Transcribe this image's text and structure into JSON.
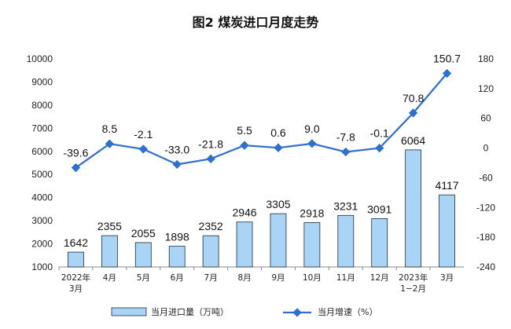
{
  "chart_data": {
    "type": "bar+line",
    "title": "图2  煤炭进口月度走势",
    "categories": [
      [
        "2022年",
        "3月"
      ],
      [
        "4月"
      ],
      [
        "5月"
      ],
      [
        "6月"
      ],
      [
        "7月"
      ],
      [
        "8月"
      ],
      [
        "9月"
      ],
      [
        "10月"
      ],
      [
        "11月"
      ],
      [
        "12月"
      ],
      [
        "2023年",
        "1−2月"
      ],
      [
        "3月"
      ]
    ],
    "series": [
      {
        "name": "当月进口量（万吨）",
        "type": "bar",
        "axis": "left",
        "values": [
          1642,
          2355,
          2055,
          1898,
          2352,
          2946,
          3305,
          2918,
          3231,
          3091,
          6064,
          4117
        ],
        "labels": [
          "1642",
          "2355",
          "2055",
          "1898",
          "2352",
          "2946",
          "3305",
          "2918",
          "3231",
          "3091",
          "6064",
          "4117"
        ]
      },
      {
        "name": "当月增速（%）",
        "type": "line",
        "axis": "right",
        "values": [
          -39.6,
          8.5,
          -2.1,
          -33.0,
          -21.8,
          5.5,
          0.6,
          9.0,
          -7.8,
          -0.1,
          70.8,
          150.7
        ],
        "labels": [
          "-39.6",
          "8.5",
          "-2.1",
          "-33.0",
          "-21.8",
          "5.5",
          "0.6",
          "9.0",
          "-7.8",
          "-0.1",
          "70.8",
          "150.7"
        ]
      }
    ],
    "y_left": {
      "min": 1000,
      "max": 10000,
      "ticks": [
        "1000",
        "2000",
        "3000",
        "4000",
        "5000",
        "6000",
        "7000",
        "8000",
        "9000",
        "10000"
      ]
    },
    "y_right": {
      "min": -240,
      "max": 180,
      "ticks": [
        "-240",
        "-180",
        "-120",
        "-60",
        "0",
        "60",
        "120",
        "180"
      ]
    },
    "grid": false,
    "legend_position": "bottom",
    "colors": {
      "bar_fill": "#a9d4f5",
      "bar_stroke": "#1f2d3d",
      "line": "#2e6fcf",
      "axis": "#888888"
    }
  }
}
